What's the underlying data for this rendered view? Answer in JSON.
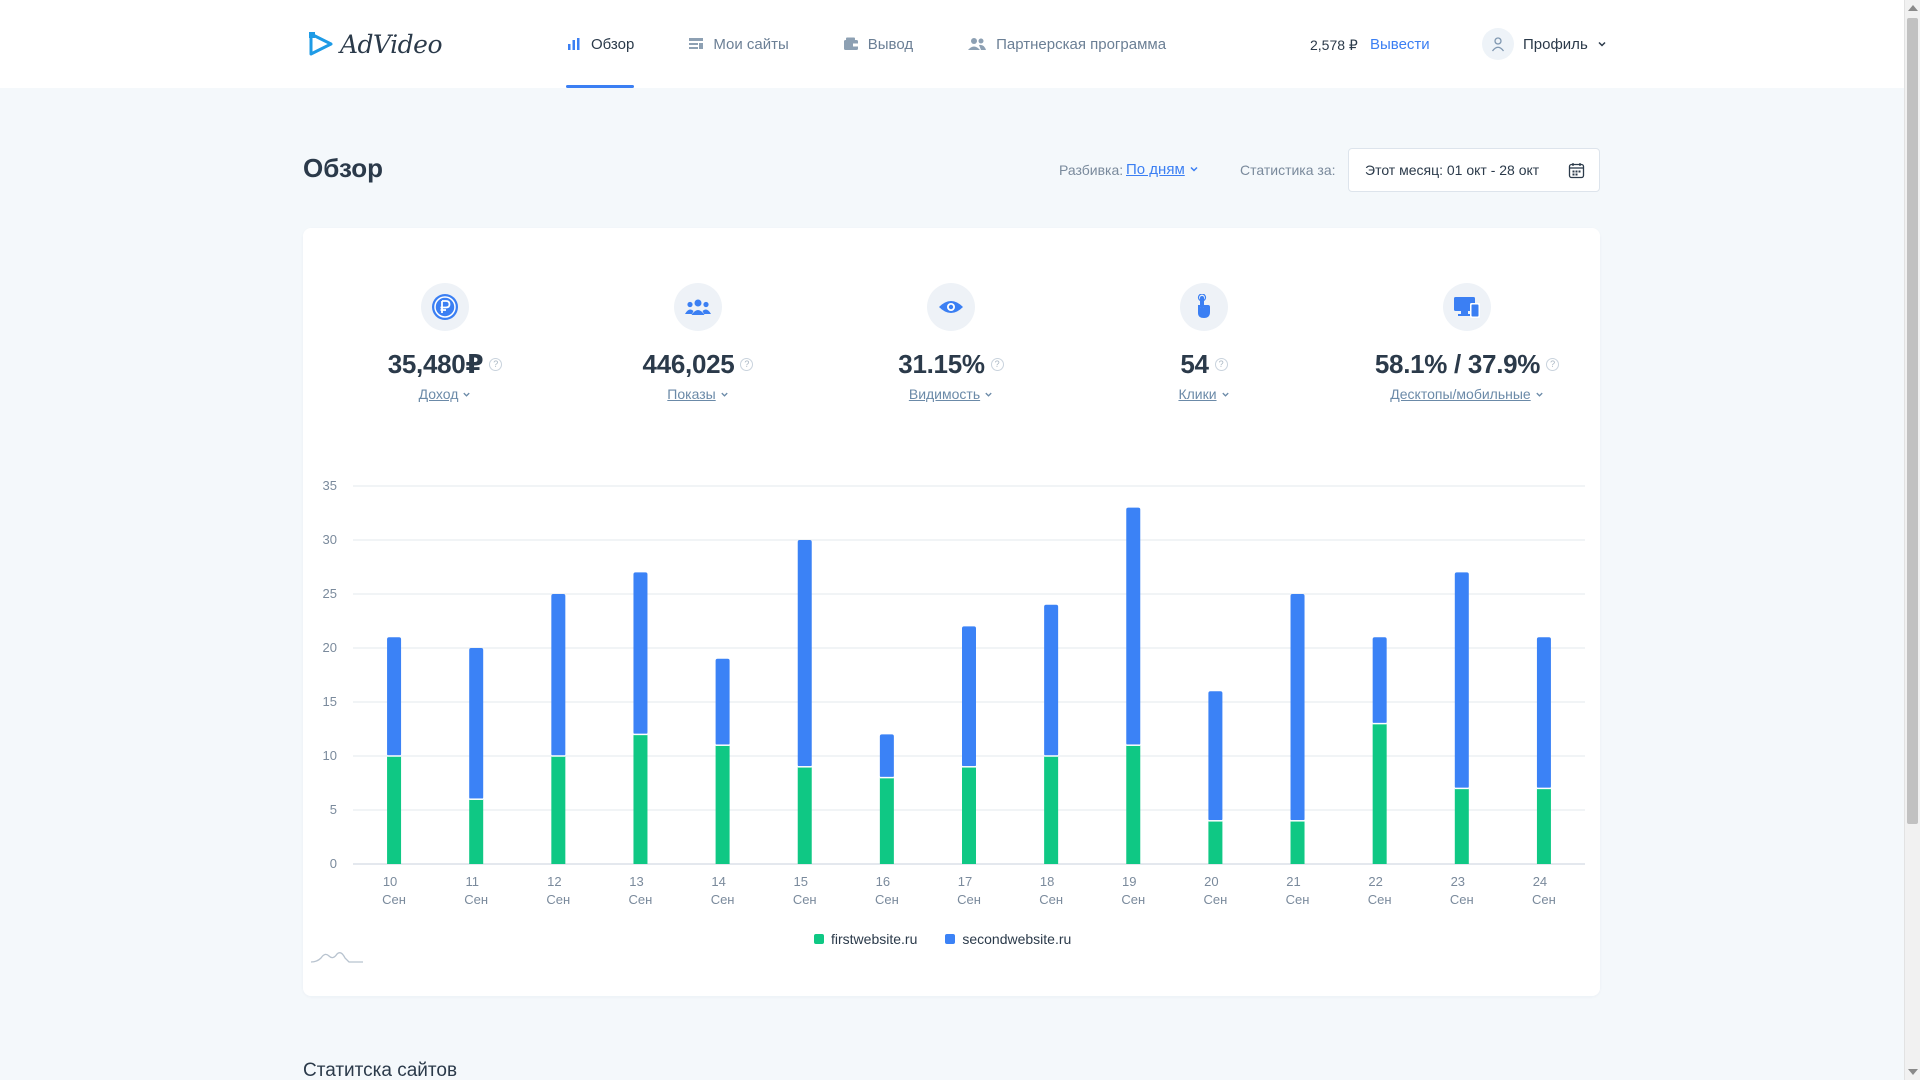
{
  "header": {
    "logo_text": "AdVideo",
    "nav": [
      {
        "label": "Обзор",
        "icon": "bar-chart-icon",
        "active": true
      },
      {
        "label": "Мои сайты",
        "icon": "list-icon",
        "active": false
      },
      {
        "label": "Вывод",
        "icon": "wallet-icon",
        "active": false
      },
      {
        "label": "Партнерская программа",
        "icon": "users-icon",
        "active": false
      }
    ],
    "balance": "2,578 ₽",
    "withdraw_label": "Вывести",
    "profile_label": "Профиль"
  },
  "page": {
    "title": "Обзор",
    "breakdown_label": "Разбивка:",
    "breakdown_value": "По дням",
    "stats_label": "Статистика за:",
    "date_range": "Этот месяц: 01 окт - 28 окт"
  },
  "metrics": [
    {
      "value": "35,480₽",
      "label": "Доход",
      "icon": "ruble-coin-icon"
    },
    {
      "value": "446,025",
      "label": "Показы",
      "icon": "audience-icon"
    },
    {
      "value": "31.15%",
      "label": "Видимость",
      "icon": "eye-icon"
    },
    {
      "value": "54",
      "label": "Клики",
      "icon": "pointer-hand-icon"
    },
    {
      "value": "58.1% / 37.9%",
      "label": "Десктопы/мобильные",
      "icon": "devices-icon"
    }
  ],
  "chart_data": {
    "type": "bar",
    "stacked": true,
    "categories": [
      "10",
      "11",
      "12",
      "13",
      "14",
      "15",
      "16",
      "17",
      "18",
      "19",
      "20",
      "21",
      "22",
      "23",
      "24"
    ],
    "category_sublabel": "Сен",
    "series": [
      {
        "name": "firstwebsite.ru",
        "color": "#0fc884",
        "values": [
          10,
          6,
          10,
          12,
          11,
          9,
          8,
          9,
          10,
          11,
          4,
          4,
          13,
          7,
          7
        ]
      },
      {
        "name": "secondwebsite.ru",
        "color": "#3b82f6",
        "values": [
          11,
          14,
          15,
          15,
          8,
          21,
          4,
          13,
          14,
          22,
          12,
          21,
          8,
          20,
          14
        ]
      }
    ],
    "ylim": [
      0,
      35
    ],
    "yticks": [
      0,
      5,
      10,
      15,
      20,
      25,
      30,
      35
    ],
    "grid": true,
    "legend_position": "bottom"
  },
  "section_title": "Статитска сайтов"
}
